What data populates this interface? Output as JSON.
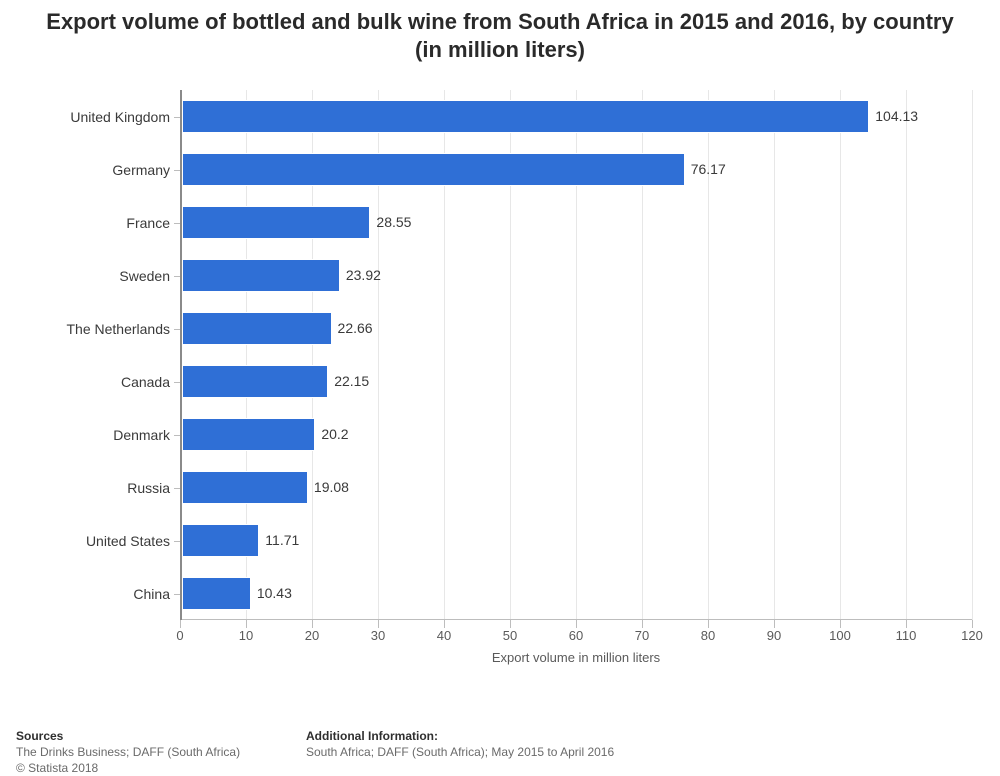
{
  "title": {
    "text": "Export volume of bottled and bulk wine from South Africa in 2015 and 2016, by country (in million liters)",
    "fontsize": 22,
    "fontweight": 700,
    "color": "#2a2a2a"
  },
  "chart": {
    "type": "bar-horizontal",
    "background_color": "#ffffff",
    "grid_color": "#e7e7e7",
    "axis_color": "#bdbdbd",
    "yaxis_line_color": "#8a8a8a",
    "bar_color": "#2f6fd6",
    "bar_border_color": "#ffffff",
    "xmin": 0,
    "xmax": 120,
    "xtick_step": 10,
    "xticks": [
      0,
      10,
      20,
      30,
      40,
      50,
      60,
      70,
      80,
      90,
      100,
      110,
      120
    ],
    "xlabel": "Export volume in million liters",
    "xlabel_fontsize": 13,
    "tick_fontsize": 13,
    "value_label_fontsize": 14,
    "category_label_fontsize": 14,
    "bar_fill_ratio": 0.64,
    "categories": [
      "United Kingdom",
      "Germany",
      "France",
      "Sweden",
      "The Netherlands",
      "Canada",
      "Denmark",
      "Russia",
      "United States",
      "China"
    ],
    "values": [
      104.13,
      76.17,
      28.55,
      23.92,
      22.66,
      22.15,
      20.2,
      19.08,
      11.71,
      10.43
    ],
    "value_labels": [
      "104.13",
      "76.17",
      "28.55",
      "23.92",
      "22.66",
      "22.15",
      "20.2",
      "19.08",
      "11.71",
      "10.43"
    ]
  },
  "footer": {
    "sources_head": "Sources",
    "sources_lines": [
      "The Drinks Business; DAFF (South Africa)",
      "© Statista 2018"
    ],
    "info_head": "Additional Information:",
    "info_lines": [
      "South Africa; DAFF (South Africa); May 2015 to April 2016"
    ],
    "fontsize": 12,
    "head_color": "#2f2f2f",
    "text_color": "#6a6a6a"
  }
}
